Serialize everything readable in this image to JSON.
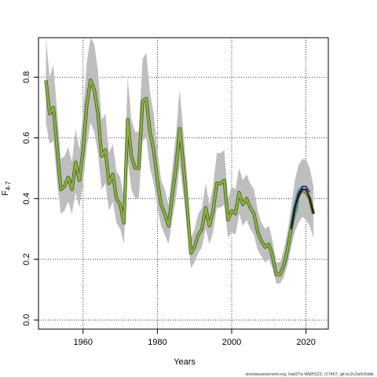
{
  "chart_data": {
    "type": "line",
    "title": "",
    "xlabel": "Years",
    "ylabel_main": "F",
    "ylabel_sub": "4-7",
    "xlim": [
      1948,
      2026
    ],
    "ylim": [
      -0.03,
      0.93
    ],
    "xticks": [
      1960,
      1980,
      2000,
      2020
    ],
    "yticks": [
      0.0,
      0.2,
      0.4,
      0.6,
      0.8
    ],
    "grid": true,
    "legend": "none",
    "colors": {
      "band": "#bebebe",
      "band_recent": "#3aa6a0",
      "main_line": "#8cb33a",
      "main_edge": "#3c5a1e",
      "retro_lines": [
        "#1f78b4",
        "#2c2c8c",
        "#111111"
      ]
    },
    "series": [
      {
        "x": [
          1950,
          1951,
          1952,
          1953,
          1954,
          1955,
          1956,
          1957,
          1958,
          1959,
          1960,
          1961,
          1962,
          1963,
          1964,
          1965,
          1966,
          1967,
          1968,
          1969,
          1970,
          1971,
          1972,
          1973,
          1974,
          1975,
          1976,
          1977,
          1978,
          1979,
          1980,
          1981,
          1982,
          1983,
          1984,
          1985,
          1986,
          1987,
          1988,
          1989,
          1990,
          1991,
          1992,
          1993,
          1994,
          1995,
          1996,
          1997,
          1998,
          1999,
          2000,
          2001,
          2002,
          2003,
          2004,
          2005,
          2006,
          2007,
          2008,
          2009,
          2010,
          2011,
          2012,
          2013,
          2014,
          2015,
          2016,
          2017,
          2018,
          2019,
          2020,
          2021,
          2022
        ],
        "y": [
          0.79,
          0.68,
          0.7,
          0.57,
          0.43,
          0.44,
          0.47,
          0.43,
          0.52,
          0.46,
          0.56,
          0.71,
          0.79,
          0.76,
          0.68,
          0.54,
          0.56,
          0.45,
          0.48,
          0.4,
          0.38,
          0.32,
          0.66,
          0.54,
          0.5,
          0.5,
          0.72,
          0.73,
          0.62,
          0.56,
          0.46,
          0.38,
          0.35,
          0.31,
          0.41,
          0.5,
          0.63,
          0.51,
          0.38,
          0.22,
          0.24,
          0.28,
          0.3,
          0.37,
          0.31,
          0.36,
          0.45,
          0.45,
          0.46,
          0.33,
          0.36,
          0.35,
          0.42,
          0.38,
          0.4,
          0.37,
          0.35,
          0.29,
          0.26,
          0.24,
          0.25,
          0.21,
          0.15,
          0.15,
          0.18,
          0.23,
          0.3,
          0.37,
          0.41,
          0.43,
          0.42,
          0.4,
          0.35
        ],
        "lower": [
          0.65,
          0.58,
          0.59,
          0.46,
          0.35,
          0.36,
          0.39,
          0.35,
          0.42,
          0.37,
          0.45,
          0.57,
          0.65,
          0.62,
          0.55,
          0.43,
          0.45,
          0.36,
          0.39,
          0.32,
          0.3,
          0.25,
          0.53,
          0.43,
          0.4,
          0.4,
          0.59,
          0.6,
          0.5,
          0.45,
          0.37,
          0.31,
          0.28,
          0.25,
          0.33,
          0.4,
          0.51,
          0.41,
          0.3,
          0.17,
          0.19,
          0.22,
          0.24,
          0.3,
          0.25,
          0.29,
          0.37,
          0.37,
          0.38,
          0.27,
          0.29,
          0.28,
          0.35,
          0.31,
          0.33,
          0.3,
          0.28,
          0.23,
          0.21,
          0.19,
          0.2,
          0.17,
          0.12,
          0.12,
          0.14,
          0.18,
          0.24,
          0.29,
          0.32,
          0.34,
          0.33,
          0.31,
          0.27
        ],
        "upper": [
          0.93,
          0.8,
          0.84,
          0.69,
          0.53,
          0.54,
          0.57,
          0.52,
          0.63,
          0.56,
          0.68,
          0.85,
          0.93,
          0.91,
          0.82,
          0.66,
          0.68,
          0.55,
          0.58,
          0.49,
          0.47,
          0.4,
          0.8,
          0.66,
          0.62,
          0.62,
          0.86,
          0.88,
          0.75,
          0.68,
          0.56,
          0.46,
          0.43,
          0.38,
          0.5,
          0.61,
          0.76,
          0.62,
          0.47,
          0.27,
          0.3,
          0.35,
          0.37,
          0.45,
          0.38,
          0.44,
          0.55,
          0.55,
          0.56,
          0.4,
          0.44,
          0.43,
          0.5,
          0.46,
          0.48,
          0.45,
          0.43,
          0.36,
          0.32,
          0.3,
          0.31,
          0.26,
          0.19,
          0.19,
          0.23,
          0.29,
          0.37,
          0.46,
          0.51,
          0.53,
          0.53,
          0.5,
          0.44
        ]
      }
    ],
    "retro": [
      {
        "x": [
          2016,
          2017,
          2018,
          2019,
          2020
        ],
        "y": [
          0.3,
          0.38,
          0.42,
          0.44,
          0.44
        ]
      },
      {
        "x": [
          2016,
          2017,
          2018,
          2019,
          2020,
          2021
        ],
        "y": [
          0.3,
          0.37,
          0.42,
          0.44,
          0.44,
          0.42
        ]
      },
      {
        "x": [
          2016,
          2017,
          2018,
          2019,
          2020,
          2021,
          2022
        ],
        "y": [
          0.3,
          0.37,
          0.41,
          0.43,
          0.43,
          0.4,
          0.35
        ]
      }
    ],
    "retro_band": {
      "x": [
        2014,
        2015,
        2016,
        2017,
        2018
      ],
      "lower": [
        0.16,
        0.2,
        0.27,
        0.33,
        0.37
      ],
      "upper": [
        0.2,
        0.26,
        0.33,
        0.4,
        0.44
      ]
    }
  },
  "footer": {
    "text": "stockassessment.org, had27a-WEBS22, r17467, git:ec2c2a0c6dde"
  }
}
